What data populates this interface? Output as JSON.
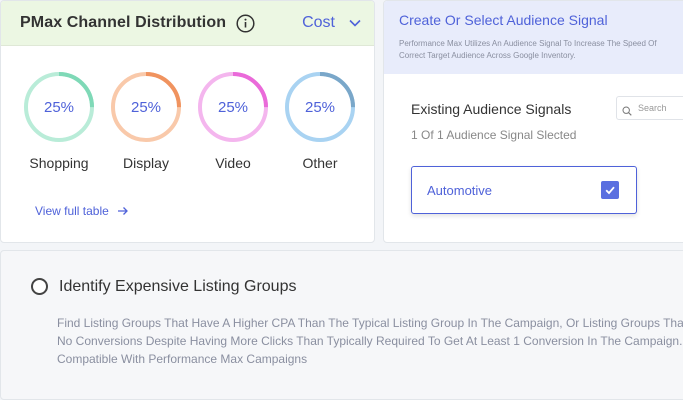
{
  "channel_card": {
    "title": "PMax Channel Distribution",
    "info_icon": "info-icon",
    "metric": "Cost",
    "metric_icon": "chevron-down-icon",
    "accent": "#4f62d9",
    "channels": [
      {
        "label": "Shopping",
        "value": "25%",
        "fraction": 0.25,
        "color": "#7fd9b7",
        "track": "#b9ecd8"
      },
      {
        "label": "Display",
        "value": "25%",
        "fraction": 0.25,
        "color": "#f0935f",
        "track": "#f9c9aa"
      },
      {
        "label": "Video",
        "value": "25%",
        "fraction": 0.25,
        "color": "#ea6ad9",
        "track": "#f4b6ee"
      },
      {
        "label": "Other",
        "value": "25%",
        "fraction": 0.25,
        "color": "#7aa7c9",
        "track": "#a9d3f2"
      }
    ],
    "view_link": "View full table",
    "view_link_icon": "arrow-right-icon"
  },
  "audience_card": {
    "title": "Create Or Select Audience Signal",
    "description_line1": "Performance Max Utilizes An Audience Signal To Increase The Speed Of",
    "description_line2": "Correct Target Audience Across Google Inventory.",
    "subtitle": "Existing Audience Signals",
    "count_text": "1 Of 1 Audience Signal Slected",
    "search_placeholder": "Search",
    "search_icon": "search-icon",
    "signals": [
      {
        "label": "Automotive",
        "checked": true
      }
    ]
  },
  "list_groups_card": {
    "title": "Identify Expensive Listing Groups",
    "line1": "Find Listing Groups That Have A Higher CPA Than The Typical Listing Group In The Campaign, Or Listing Groups That Have",
    "line2": "No Conversions Despite Having More Clicks Than Typically Required To Get At Least 1 Conversion In The Campaign.",
    "line3": "Compatible With Performance Max Campaigns"
  }
}
